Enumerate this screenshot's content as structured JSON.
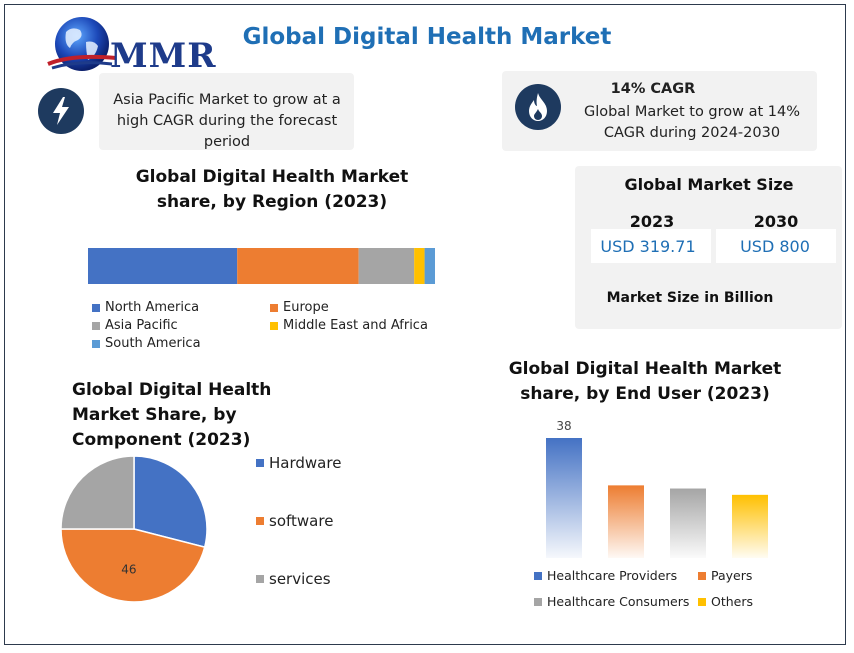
{
  "header": {
    "title": "Global Digital Health Market",
    "logo_text": "MMR"
  },
  "callout_left": {
    "icon": "lightning-icon",
    "text": "Asia Pacific Market to grow at a high CAGR during the forecast period"
  },
  "callout_right": {
    "icon": "flame-icon",
    "heading": "14% CAGR",
    "text": "Global Market to grow at 14% CAGR during 2024-2030"
  },
  "market_size": {
    "title": "Global Market Size",
    "year_a": "2023",
    "year_b": "2030",
    "value_a": "USD 319.71",
    "value_b": "USD 800",
    "footer": "Market Size in Billion"
  },
  "colors": {
    "blue": "#4472c4",
    "orange": "#ed7d31",
    "gray": "#a5a5a5",
    "yellow": "#ffc000",
    "lightblue": "#5b9bd5",
    "title_blue": "#1f6fb5"
  },
  "chart_data": [
    {
      "type": "bar",
      "orientation": "horizontal-stacked",
      "title": "Global Digital Health Market share, by Region (2023)",
      "categories": [
        "2023"
      ],
      "series": [
        {
          "name": "North America",
          "values": [
            43
          ]
        },
        {
          "name": "Europe",
          "values": [
            35
          ]
        },
        {
          "name": "Asia Pacific",
          "values": [
            16
          ]
        },
        {
          "name": "Middle East and Africa",
          "values": [
            3
          ]
        },
        {
          "name": "South America",
          "values": [
            3
          ]
        }
      ],
      "xlim": [
        0,
        100
      ],
      "legend": "bottom"
    },
    {
      "type": "pie",
      "title": "Global Digital Health Market Share, by Component (2023)",
      "labels": [
        "Hardware",
        "software",
        "services"
      ],
      "values": [
        29,
        46,
        25
      ],
      "data_labels": [
        "",
        "46",
        ""
      ],
      "legend": "right"
    },
    {
      "type": "bar",
      "title": "Global Digital Health Market share, by End User (2023)",
      "categories": [
        "Healthcare Providers",
        "Payers",
        "Healthcare Consumers",
        "Others"
      ],
      "values": [
        38,
        23,
        22,
        20
      ],
      "data_labels": [
        "38",
        "",
        "",
        ""
      ],
      "legend": "bottom"
    }
  ]
}
